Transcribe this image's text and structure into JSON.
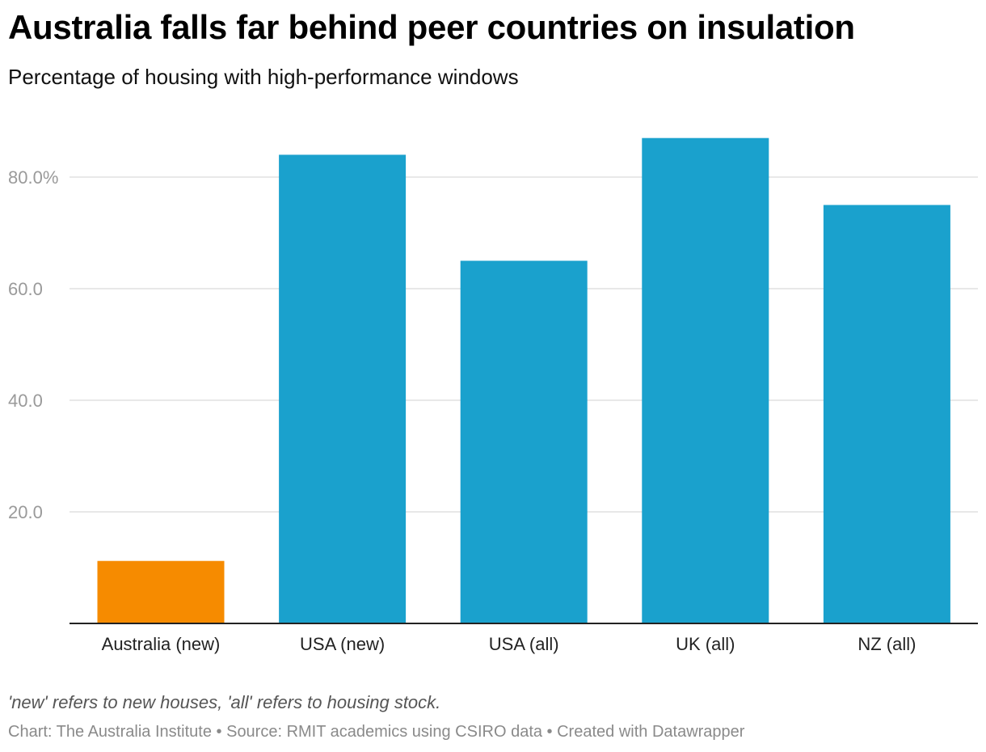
{
  "chart_data": {
    "type": "bar",
    "title": "Australia falls far behind peer countries on insulation",
    "subtitle": "Percentage of housing with high-performance windows",
    "categories": [
      "Australia (new)",
      "USA (new)",
      "USA (all)",
      "UK (all)",
      "NZ (all)"
    ],
    "values": [
      11.2,
      84,
      65,
      87,
      75
    ],
    "bar_colors": [
      "#f68b00",
      "#1aa1cd",
      "#1aa1cd",
      "#1aa1cd",
      "#1aa1cd"
    ],
    "ylim": [
      0,
      90
    ],
    "yticks": [
      20,
      40,
      60,
      80
    ],
    "ytick_labels": [
      "20.0",
      "40.0",
      "60.0",
      "80.0%"
    ],
    "grid": true,
    "xlabel": "",
    "ylabel": ""
  },
  "note": "'new' refers to new houses, 'all' refers to housing stock.",
  "credits": "Chart: The Australia Institute • Source: RMIT academics using CSIRO data • Created with Datawrapper"
}
